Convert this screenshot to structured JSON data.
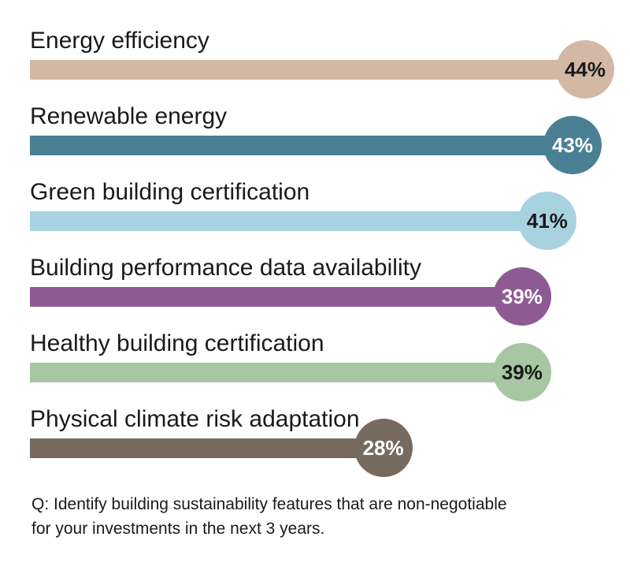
{
  "chart_data": {
    "type": "bar",
    "orientation": "horizontal",
    "categories": [
      "Energy efficiency",
      "Renewable energy",
      "Green building certification",
      "Building performance data availability",
      "Healthy building certification",
      "Physical climate risk adaptation"
    ],
    "values": [
      44,
      43,
      41,
      39,
      39,
      28
    ],
    "value_labels": [
      "44%",
      "43%",
      "41%",
      "39%",
      "39%",
      "28%"
    ],
    "unit": "%",
    "colors": [
      "#d4b8a6",
      "#4b7f93",
      "#a9d2e0",
      "#8e5a93",
      "#a7c7a2",
      "#776a5f"
    ],
    "label_colors": [
      "#1a1a1a",
      "#ffffff",
      "#1a1a1a",
      "#ffffff",
      "#1a1a1a",
      "#ffffff"
    ],
    "xlim": [
      0,
      44
    ],
    "grid": false,
    "legend": "none"
  },
  "footnote": {
    "line1": "Q: Identify building sustainability features that are non-negotiable",
    "line2": "for your investments in the next 3 years."
  }
}
